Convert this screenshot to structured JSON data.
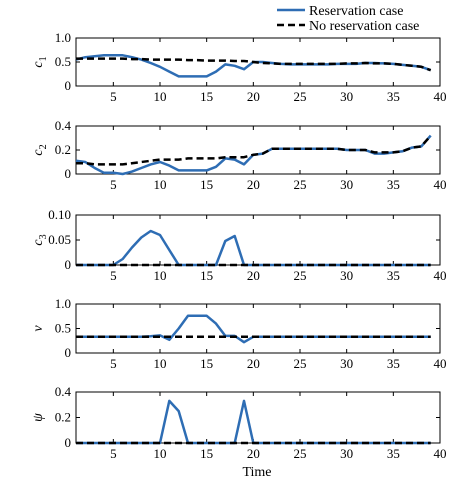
{
  "legend": [
    {
      "label": "Reservation case",
      "style": "solid",
      "color": "#2E6DB4"
    },
    {
      "label": "No reservation case",
      "style": "dashed",
      "color": "#000000"
    }
  ],
  "xlabel": "Time",
  "chart_data": [
    {
      "type": "line",
      "ylabel": "c₁",
      "ylabel_main": "c",
      "ylabel_sub": "1",
      "xlim": [
        1,
        40
      ],
      "ylim": [
        0,
        1.0
      ],
      "xticks": [
        5,
        10,
        15,
        20,
        25,
        30,
        35,
        40
      ],
      "yticks": [
        "0",
        "0.5",
        "1.0"
      ],
      "ytick_values": [
        0,
        0.5,
        1.0
      ],
      "series": [
        {
          "name": "Reservation case",
          "x": [
            1,
            2,
            3,
            4,
            5,
            6,
            7,
            8,
            9,
            10,
            11,
            12,
            13,
            14,
            15,
            16,
            17,
            18,
            19,
            20,
            21,
            22,
            23,
            24,
            25,
            26,
            27,
            28,
            29,
            30,
            31,
            32,
            33,
            34,
            35,
            36,
            37,
            38,
            39
          ],
          "y": [
            0.55,
            0.6,
            0.62,
            0.64,
            0.64,
            0.64,
            0.6,
            0.55,
            0.48,
            0.4,
            0.3,
            0.2,
            0.2,
            0.2,
            0.2,
            0.3,
            0.45,
            0.42,
            0.35,
            0.5,
            0.5,
            0.48,
            0.46,
            0.45,
            0.45,
            0.45,
            0.45,
            0.45,
            0.46,
            0.46,
            0.46,
            0.48,
            0.48,
            0.47,
            0.46,
            0.44,
            0.42,
            0.4,
            0.33
          ]
        },
        {
          "name": "No reservation case",
          "x": [
            1,
            2,
            3,
            4,
            5,
            6,
            7,
            8,
            9,
            10,
            11,
            12,
            13,
            14,
            15,
            16,
            17,
            18,
            19,
            20,
            21,
            22,
            23,
            24,
            25,
            26,
            27,
            28,
            29,
            30,
            31,
            32,
            33,
            34,
            35,
            36,
            37,
            38,
            39
          ],
          "y": [
            0.57,
            0.57,
            0.57,
            0.57,
            0.57,
            0.57,
            0.56,
            0.56,
            0.55,
            0.55,
            0.55,
            0.55,
            0.54,
            0.54,
            0.53,
            0.53,
            0.53,
            0.52,
            0.52,
            0.5,
            0.48,
            0.47,
            0.46,
            0.46,
            0.46,
            0.46,
            0.46,
            0.46,
            0.46,
            0.47,
            0.47,
            0.48,
            0.47,
            0.47,
            0.46,
            0.44,
            0.42,
            0.4,
            0.33
          ]
        }
      ]
    },
    {
      "type": "line",
      "ylabel": "c₂",
      "ylabel_main": "c",
      "ylabel_sub": "2",
      "xlim": [
        1,
        40
      ],
      "ylim": [
        0,
        0.4
      ],
      "xticks": [
        5,
        10,
        15,
        20,
        25,
        30,
        35,
        40
      ],
      "yticks": [
        "0",
        "0.2",
        "0.4"
      ],
      "ytick_values": [
        0,
        0.2,
        0.4
      ],
      "series": [
        {
          "name": "Reservation case",
          "x": [
            1,
            2,
            3,
            4,
            5,
            6,
            7,
            8,
            9,
            10,
            11,
            12,
            13,
            14,
            15,
            16,
            17,
            18,
            19,
            20,
            21,
            22,
            23,
            24,
            25,
            26,
            27,
            28,
            29,
            30,
            31,
            32,
            33,
            34,
            35,
            36,
            37,
            38,
            39
          ],
          "y": [
            0.11,
            0.1,
            0.05,
            0.01,
            0.01,
            0.0,
            0.02,
            0.05,
            0.08,
            0.1,
            0.07,
            0.03,
            0.03,
            0.03,
            0.03,
            0.06,
            0.13,
            0.12,
            0.08,
            0.16,
            0.17,
            0.21,
            0.21,
            0.21,
            0.21,
            0.21,
            0.21,
            0.21,
            0.21,
            0.2,
            0.2,
            0.2,
            0.17,
            0.17,
            0.18,
            0.19,
            0.22,
            0.23,
            0.32
          ]
        },
        {
          "name": "No reservation case",
          "x": [
            1,
            2,
            3,
            4,
            5,
            6,
            7,
            8,
            9,
            10,
            11,
            12,
            13,
            14,
            15,
            16,
            17,
            18,
            19,
            20,
            21,
            22,
            23,
            24,
            25,
            26,
            27,
            28,
            29,
            30,
            31,
            32,
            33,
            34,
            35,
            36,
            37,
            38,
            39
          ],
          "y": [
            0.09,
            0.09,
            0.08,
            0.08,
            0.08,
            0.08,
            0.09,
            0.1,
            0.11,
            0.12,
            0.12,
            0.12,
            0.13,
            0.13,
            0.13,
            0.13,
            0.14,
            0.14,
            0.14,
            0.16,
            0.17,
            0.21,
            0.21,
            0.21,
            0.21,
            0.21,
            0.21,
            0.21,
            0.21,
            0.2,
            0.2,
            0.2,
            0.18,
            0.18,
            0.18,
            0.19,
            0.22,
            0.23,
            0.32
          ]
        }
      ]
    },
    {
      "type": "line",
      "ylabel": "c₃",
      "ylabel_main": "c",
      "ylabel_sub": "3",
      "xlim": [
        1,
        40
      ],
      "ylim": [
        0,
        0.1
      ],
      "xticks": [
        5,
        10,
        15,
        20,
        25,
        30,
        35,
        40
      ],
      "yticks": [
        "0",
        "0.05",
        "0.10"
      ],
      "ytick_values": [
        0,
        0.05,
        0.1
      ],
      "series": [
        {
          "name": "Reservation case",
          "x": [
            1,
            2,
            3,
            4,
            5,
            6,
            7,
            8,
            9,
            10,
            11,
            12,
            13,
            14,
            15,
            16,
            17,
            18,
            19,
            20,
            21,
            22,
            23,
            24,
            25,
            26,
            27,
            28,
            29,
            30,
            31,
            32,
            33,
            34,
            35,
            36,
            37,
            38,
            39
          ],
          "y": [
            0,
            0,
            0,
            0,
            0,
            0.012,
            0.035,
            0.055,
            0.068,
            0.06,
            0.03,
            0,
            0,
            0,
            0,
            0,
            0.048,
            0.058,
            0,
            0,
            0,
            0,
            0,
            0,
            0,
            0,
            0,
            0,
            0,
            0,
            0,
            0,
            0,
            0,
            0,
            0,
            0,
            0,
            0
          ]
        },
        {
          "name": "No reservation case",
          "x": [
            1,
            2,
            3,
            4,
            5,
            6,
            7,
            8,
            9,
            10,
            11,
            12,
            13,
            14,
            15,
            16,
            17,
            18,
            19,
            20,
            21,
            22,
            23,
            24,
            25,
            26,
            27,
            28,
            29,
            30,
            31,
            32,
            33,
            34,
            35,
            36,
            37,
            38,
            39
          ],
          "y": [
            0,
            0,
            0,
            0,
            0,
            0,
            0,
            0,
            0,
            0,
            0,
            0,
            0,
            0,
            0,
            0,
            0,
            0,
            0,
            0,
            0,
            0,
            0,
            0,
            0,
            0,
            0,
            0,
            0,
            0,
            0,
            0,
            0,
            0,
            0,
            0,
            0,
            0,
            0
          ]
        }
      ]
    },
    {
      "type": "line",
      "ylabel": "v",
      "ylabel_main": "v",
      "ylabel_sub": "",
      "xlim": [
        1,
        40
      ],
      "ylim": [
        0,
        1.0
      ],
      "xticks": [
        5,
        10,
        15,
        20,
        25,
        30,
        35,
        40
      ],
      "yticks": [
        "0",
        "0.5",
        "1.0"
      ],
      "ytick_values": [
        0,
        0.5,
        1.0
      ],
      "series": [
        {
          "name": "Reservation case",
          "x": [
            1,
            2,
            3,
            4,
            5,
            6,
            7,
            8,
            9,
            10,
            11,
            12,
            13,
            14,
            15,
            16,
            17,
            18,
            19,
            20,
            21,
            22,
            23,
            24,
            25,
            26,
            27,
            28,
            29,
            30,
            31,
            32,
            33,
            34,
            35,
            36,
            37,
            38,
            39
          ],
          "y": [
            0.33,
            0.33,
            0.33,
            0.33,
            0.33,
            0.33,
            0.33,
            0.33,
            0.34,
            0.36,
            0.27,
            0.5,
            0.76,
            0.76,
            0.76,
            0.6,
            0.35,
            0.35,
            0.22,
            0.33,
            0.33,
            0.33,
            0.33,
            0.33,
            0.33,
            0.33,
            0.33,
            0.33,
            0.33,
            0.33,
            0.33,
            0.33,
            0.33,
            0.33,
            0.33,
            0.33,
            0.33,
            0.33,
            0.33
          ]
        },
        {
          "name": "No reservation case",
          "x": [
            1,
            2,
            3,
            4,
            5,
            6,
            7,
            8,
            9,
            10,
            11,
            12,
            13,
            14,
            15,
            16,
            17,
            18,
            19,
            20,
            21,
            22,
            23,
            24,
            25,
            26,
            27,
            28,
            29,
            30,
            31,
            32,
            33,
            34,
            35,
            36,
            37,
            38,
            39
          ],
          "y": [
            0.33,
            0.33,
            0.33,
            0.33,
            0.33,
            0.33,
            0.33,
            0.33,
            0.33,
            0.33,
            0.33,
            0.33,
            0.33,
            0.33,
            0.33,
            0.33,
            0.33,
            0.33,
            0.33,
            0.33,
            0.33,
            0.33,
            0.33,
            0.33,
            0.33,
            0.33,
            0.33,
            0.33,
            0.33,
            0.33,
            0.33,
            0.33,
            0.33,
            0.33,
            0.33,
            0.33,
            0.33,
            0.33,
            0.33
          ]
        }
      ]
    },
    {
      "type": "line",
      "ylabel": "ψ",
      "ylabel_main": "ψ",
      "ylabel_sub": "",
      "xlim": [
        1,
        40
      ],
      "ylim": [
        0,
        0.4
      ],
      "xticks": [
        5,
        10,
        15,
        20,
        25,
        30,
        35,
        40
      ],
      "yticks": [
        "0",
        "0.2",
        "0.4"
      ],
      "ytick_values": [
        0,
        0.2,
        0.4
      ],
      "series": [
        {
          "name": "Reservation case",
          "x": [
            1,
            2,
            3,
            4,
            5,
            6,
            7,
            8,
            9,
            10,
            11,
            12,
            13,
            14,
            15,
            16,
            17,
            18,
            19,
            20,
            21,
            22,
            23,
            24,
            25,
            26,
            27,
            28,
            29,
            30,
            31,
            32,
            33,
            34,
            35,
            36,
            37,
            38,
            39
          ],
          "y": [
            0,
            0,
            0,
            0,
            0,
            0,
            0,
            0,
            0,
            0,
            0.33,
            0.25,
            0,
            0,
            0,
            0,
            0,
            0,
            0.33,
            0,
            0,
            0,
            0,
            0,
            0,
            0,
            0,
            0,
            0,
            0,
            0,
            0,
            0,
            0,
            0,
            0,
            0,
            0,
            0
          ]
        },
        {
          "name": "No reservation case",
          "x": [
            1,
            2,
            3,
            4,
            5,
            6,
            7,
            8,
            9,
            10,
            11,
            12,
            13,
            14,
            15,
            16,
            17,
            18,
            19,
            20,
            21,
            22,
            23,
            24,
            25,
            26,
            27,
            28,
            29,
            30,
            31,
            32,
            33,
            34,
            35,
            36,
            37,
            38,
            39
          ],
          "y": [
            0,
            0,
            0,
            0,
            0,
            0,
            0,
            0,
            0,
            0,
            0,
            0,
            0,
            0,
            0,
            0,
            0,
            0,
            0,
            0,
            0,
            0,
            0,
            0,
            0,
            0,
            0,
            0,
            0,
            0,
            0,
            0,
            0,
            0,
            0,
            0,
            0,
            0,
            0
          ]
        }
      ]
    }
  ]
}
